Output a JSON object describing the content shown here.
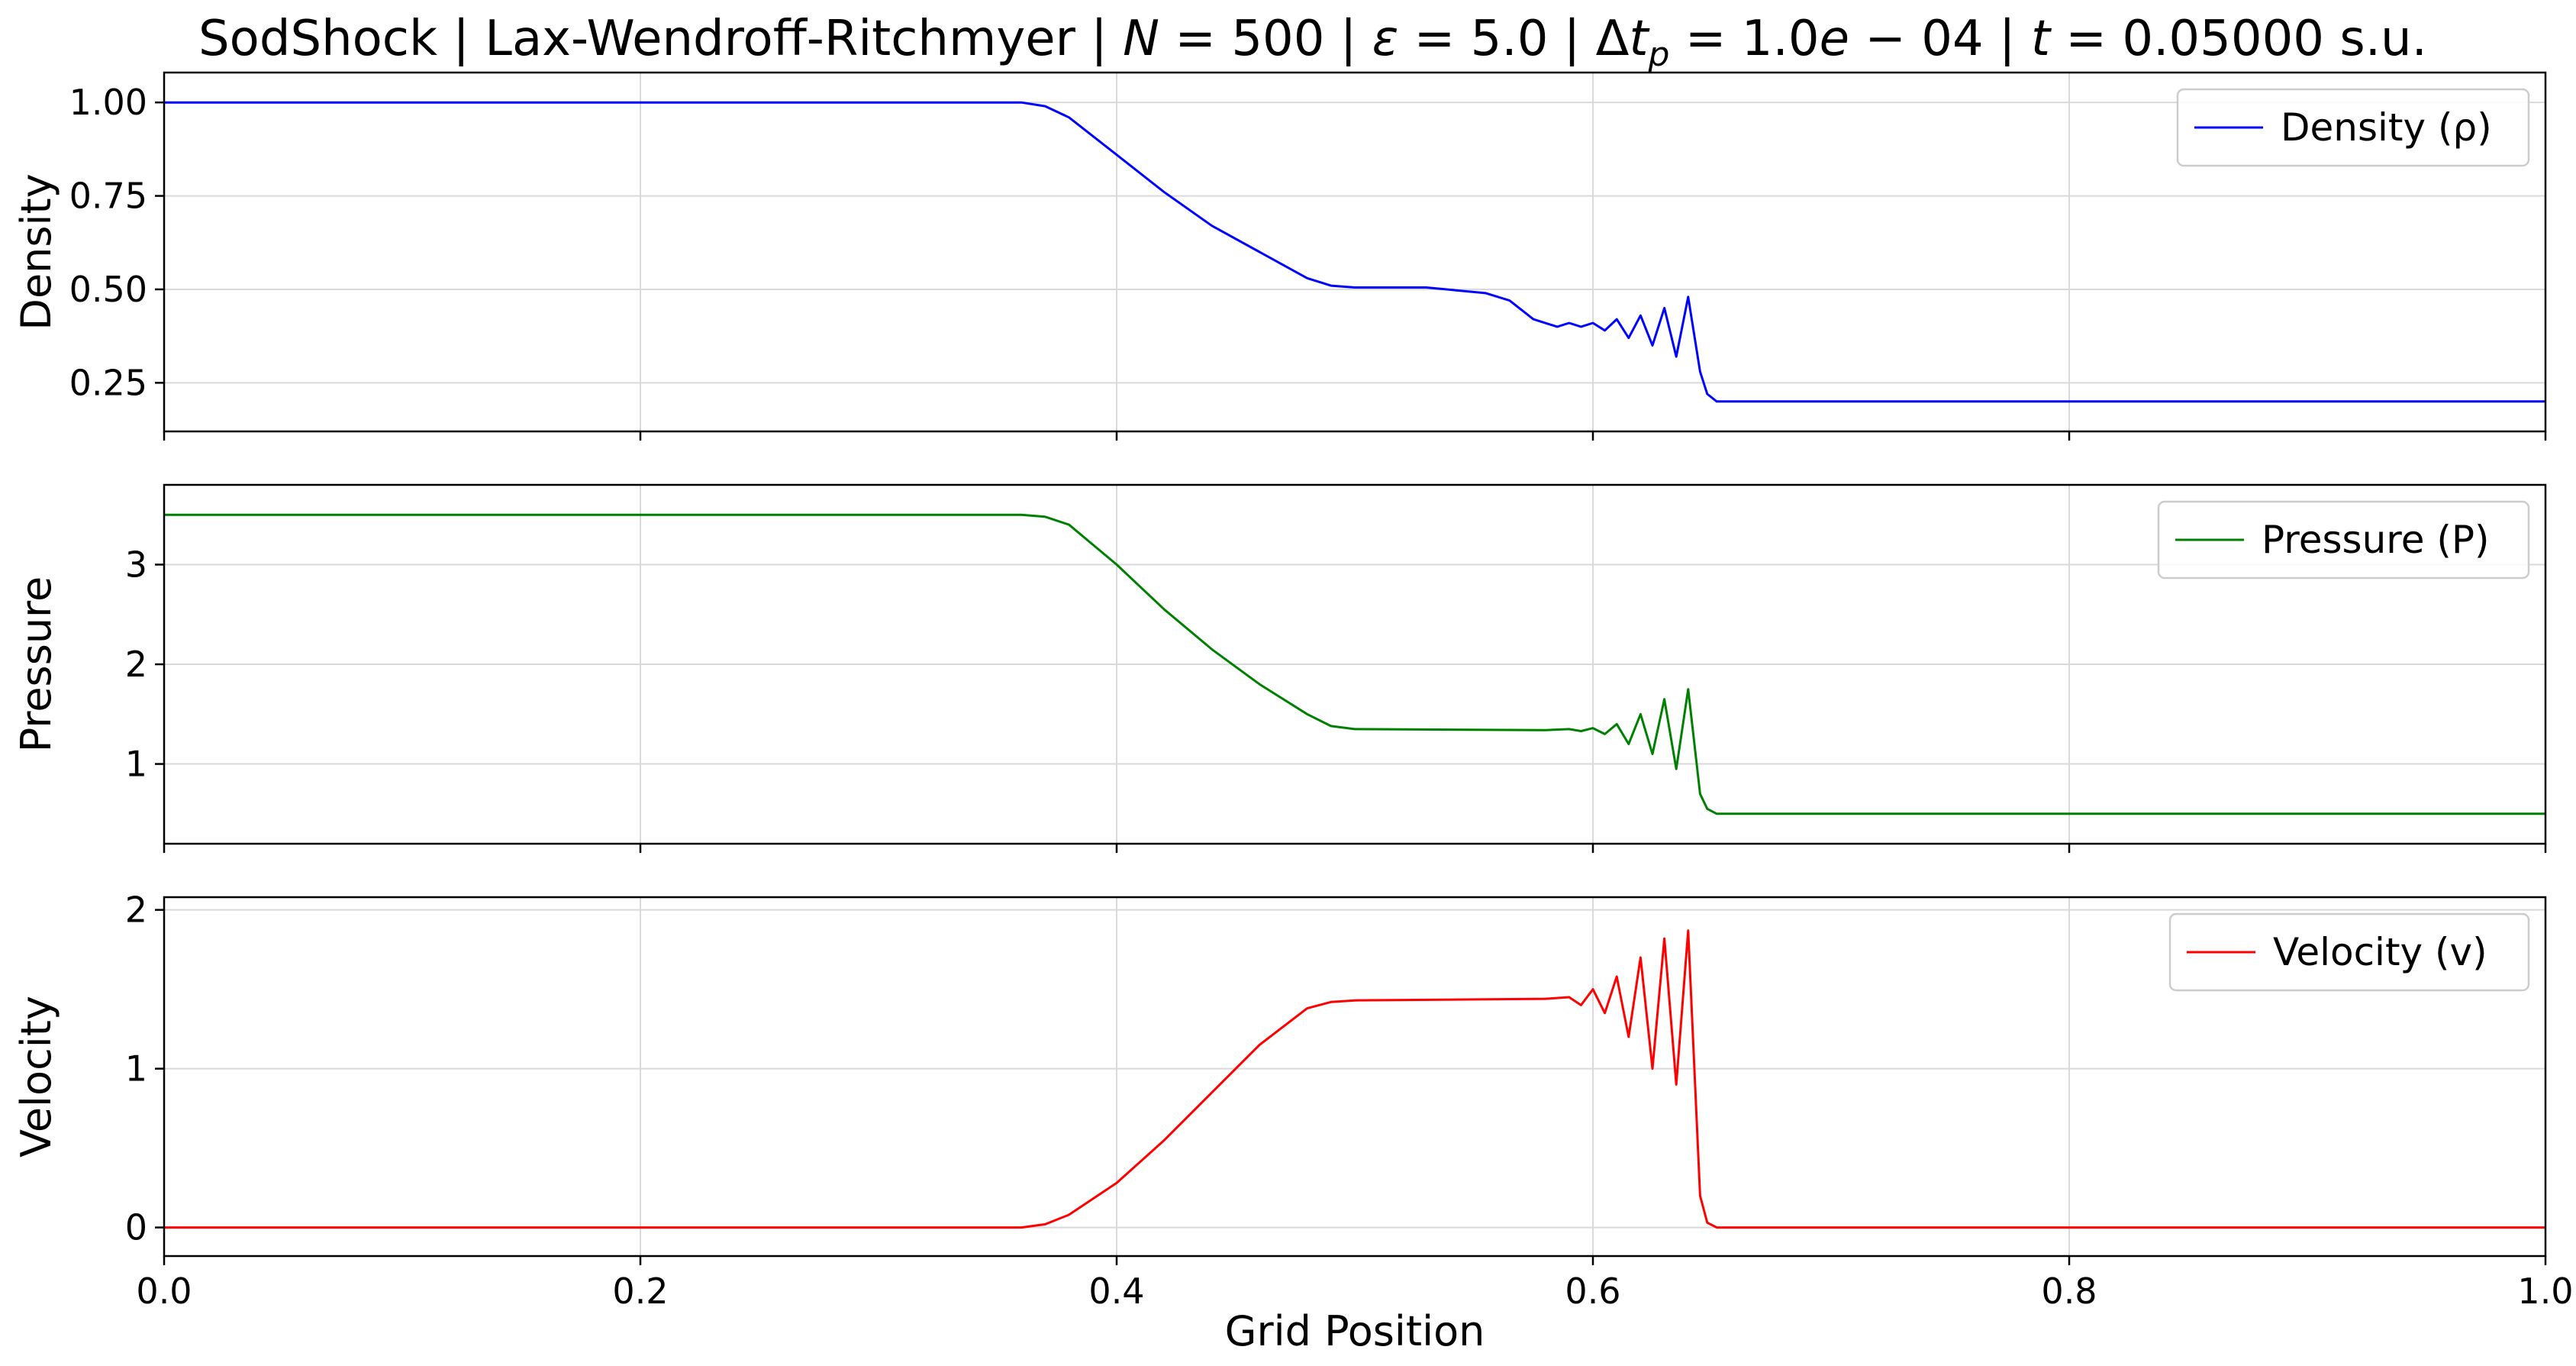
{
  "chart_data": {
    "title": "SodShock | Lax-Wendroff-Ritchmyer | N = 500 | ε = 5.0 | Δt_p = 1.0e−04 | t = 0.05000 s.u.",
    "title_parts": [
      "SodShock | Lax-Wendroff-Ritchmyer | ",
      "N",
      " = 500 | ",
      "ε",
      " = 5.0 | Δ",
      "t",
      "p",
      " = 1.0",
      "e",
      " − 04 | ",
      "t",
      " = 0.05000 s.u."
    ],
    "xlabel": "Grid Position",
    "xlim": [
      0.0,
      1.0
    ],
    "xticks": [
      0.0,
      0.2,
      0.4,
      0.6,
      0.8,
      1.0
    ],
    "xtick_labels": [
      "0.0",
      "0.2",
      "0.4",
      "0.6",
      "0.8",
      "1.0"
    ],
    "grid": true,
    "subplots": [
      {
        "type": "line",
        "ylabel": "Density",
        "ylim": [
          0.12,
          1.08
        ],
        "yticks": [
          0.25,
          0.5,
          0.75,
          1.0
        ],
        "ytick_labels": [
          "0.25",
          "0.50",
          "0.75",
          "1.00"
        ],
        "legend_position": "top-right",
        "series": [
          {
            "name": "Density (ρ)",
            "color": "#0000ff",
            "x": [
              0.0,
              0.36,
              0.37,
              0.38,
              0.4,
              0.42,
              0.44,
              0.46,
              0.48,
              0.49,
              0.5,
              0.53,
              0.555,
              0.565,
              0.575,
              0.585,
              0.59,
              0.595,
              0.6,
              0.605,
              0.61,
              0.615,
              0.62,
              0.625,
              0.63,
              0.635,
              0.64,
              0.645,
              0.648,
              0.652,
              0.66,
              1.0
            ],
            "y": [
              1.0,
              1.0,
              0.99,
              0.96,
              0.86,
              0.76,
              0.67,
              0.6,
              0.53,
              0.51,
              0.505,
              0.505,
              0.49,
              0.47,
              0.42,
              0.4,
              0.41,
              0.4,
              0.41,
              0.39,
              0.42,
              0.37,
              0.43,
              0.35,
              0.45,
              0.32,
              0.48,
              0.28,
              0.22,
              0.2,
              0.2,
              0.2
            ]
          }
        ]
      },
      {
        "type": "line",
        "ylabel": "Pressure",
        "ylim": [
          0.2,
          3.8
        ],
        "yticks": [
          1,
          2,
          3
        ],
        "ytick_labels": [
          "1",
          "2",
          "3"
        ],
        "legend_position": "top-right",
        "series": [
          {
            "name": "Pressure (P)",
            "color": "#008000",
            "x": [
              0.0,
              0.36,
              0.37,
              0.38,
              0.4,
              0.42,
              0.44,
              0.46,
              0.48,
              0.49,
              0.5,
              0.58,
              0.59,
              0.595,
              0.6,
              0.605,
              0.61,
              0.615,
              0.62,
              0.625,
              0.63,
              0.635,
              0.64,
              0.645,
              0.648,
              0.652,
              0.66,
              1.0
            ],
            "y": [
              3.5,
              3.5,
              3.48,
              3.4,
              3.0,
              2.55,
              2.15,
              1.8,
              1.5,
              1.38,
              1.35,
              1.34,
              1.35,
              1.33,
              1.36,
              1.3,
              1.4,
              1.2,
              1.5,
              1.1,
              1.65,
              0.95,
              1.75,
              0.7,
              0.55,
              0.5,
              0.5,
              0.5
            ]
          }
        ]
      },
      {
        "type": "line",
        "ylabel": "Velocity",
        "ylim": [
          -0.18,
          2.08
        ],
        "yticks": [
          0,
          1,
          2
        ],
        "ytick_labels": [
          "0",
          "1",
          "2"
        ],
        "legend_position": "top-right",
        "series": [
          {
            "name": "Velocity (v)",
            "color": "#ff0000",
            "x": [
              0.0,
              0.36,
              0.37,
              0.38,
              0.4,
              0.42,
              0.44,
              0.46,
              0.48,
              0.49,
              0.5,
              0.58,
              0.59,
              0.595,
              0.6,
              0.605,
              0.61,
              0.615,
              0.62,
              0.625,
              0.63,
              0.635,
              0.64,
              0.645,
              0.648,
              0.652,
              0.66,
              1.0
            ],
            "y": [
              0.0,
              0.0,
              0.02,
              0.08,
              0.28,
              0.55,
              0.85,
              1.15,
              1.38,
              1.42,
              1.43,
              1.44,
              1.45,
              1.4,
              1.5,
              1.35,
              1.58,
              1.2,
              1.7,
              1.0,
              1.82,
              0.9,
              1.87,
              0.2,
              0.03,
              0.0,
              0.0,
              0.0
            ]
          }
        ]
      }
    ]
  }
}
